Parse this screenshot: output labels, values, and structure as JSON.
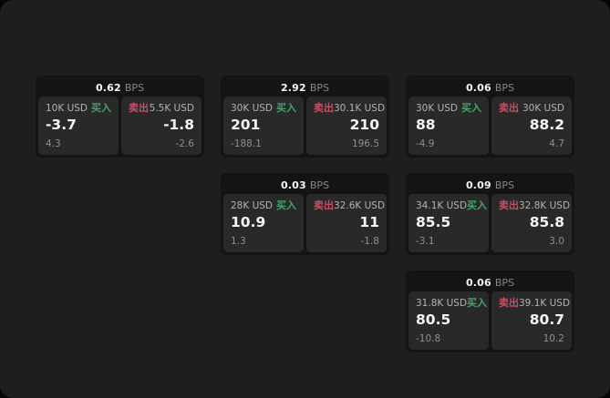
{
  "labels": {
    "bps_unit": "BPS",
    "buy": "买入",
    "sell": "卖出"
  },
  "colors": {
    "panel_background": "#1e1e1e",
    "card_background": "#141414",
    "tile_background": "#292929",
    "buy_accent": "#42a568",
    "sell_accent": "#c64f62",
    "primary_text": "#f5f5f5",
    "secondary_text": "#8f8f8f"
  },
  "cards": [
    {
      "bps": "0.62",
      "buy": {
        "amount": "10K USD",
        "price": "-3.7",
        "delta": "4.3"
      },
      "sell": {
        "amount": "5.5K USD",
        "price": "-1.8",
        "delta": "-2.6"
      }
    },
    {
      "bps": "2.92",
      "buy": {
        "amount": "30K USD",
        "price": "201",
        "delta": "-188.1"
      },
      "sell": {
        "amount": "30.1K USD",
        "price": "210",
        "delta": "196.5"
      }
    },
    {
      "bps": "0.06",
      "buy": {
        "amount": "30K USD",
        "price": "88",
        "delta": "-4.9"
      },
      "sell": {
        "amount": "30K USD",
        "price": "88.2",
        "delta": "4.7"
      }
    },
    {
      "bps": "0.03",
      "buy": {
        "amount": "28K USD",
        "price": "10.9",
        "delta": "1.3"
      },
      "sell": {
        "amount": "32.6K USD",
        "price": "11",
        "delta": "-1.8"
      }
    },
    {
      "bps": "0.09",
      "buy": {
        "amount": "34.1K USD",
        "price": "85.5",
        "delta": "-3.1"
      },
      "sell": {
        "amount": "32.8K USD",
        "price": "85.8",
        "delta": "3.0"
      }
    },
    {
      "bps": "0.06",
      "buy": {
        "amount": "31.8K USD",
        "price": "80.5",
        "delta": "-10.8"
      },
      "sell": {
        "amount": "39.1K USD",
        "price": "80.7",
        "delta": "10.2"
      }
    }
  ]
}
